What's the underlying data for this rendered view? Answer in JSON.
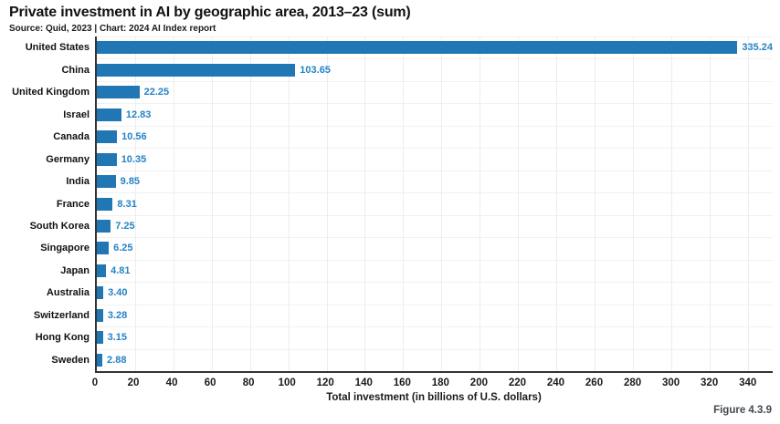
{
  "header": {
    "title": "Private investment in AI by geographic area, 2013–23 (sum)",
    "subtitle": "Source: Quid, 2023 | Chart: 2024 AI Index report"
  },
  "footer": {
    "figure_label": "Figure 4.3.9"
  },
  "colors": {
    "bar": "#2077b4",
    "value_label": "#2583c6",
    "gridline": "#ededed",
    "axis": "#333333"
  },
  "chart_data": {
    "type": "bar",
    "orientation": "horizontal",
    "title": "Private investment in AI by geographic area, 2013–23 (sum)",
    "xlabel": "Total investment (in billions of U.S. dollars)",
    "ylabel": "",
    "categories": [
      "United States",
      "China",
      "United Kingdom",
      "Israel",
      "Canada",
      "Germany",
      "India",
      "France",
      "South Korea",
      "Singapore",
      "Japan",
      "Australia",
      "Switzerland",
      "Hong Kong",
      "Sweden"
    ],
    "values": [
      335.24,
      103.65,
      22.25,
      12.83,
      10.56,
      10.35,
      9.85,
      8.31,
      7.25,
      6.25,
      4.81,
      3.4,
      3.28,
      3.15,
      2.88
    ],
    "value_labels": [
      "335.24",
      "103.65",
      "22.25",
      "12.83",
      "10.56",
      "10.35",
      "9.85",
      "8.31",
      "7.25",
      "6.25",
      "4.81",
      "3.40",
      "3.28",
      "3.15",
      "2.88"
    ],
    "xlim": [
      0,
      353
    ],
    "xticks": [
      0,
      20,
      40,
      60,
      80,
      100,
      120,
      140,
      160,
      180,
      200,
      220,
      240,
      260,
      280,
      300,
      320,
      340
    ],
    "grid": true,
    "legend": false
  }
}
